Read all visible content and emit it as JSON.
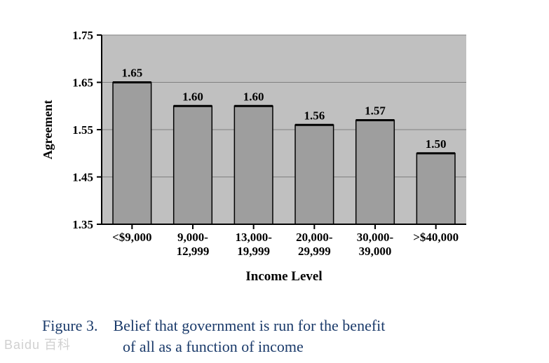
{
  "chart": {
    "type": "bar",
    "categories": [
      "<$9,000",
      "9,000-\n12,999",
      "13,000-\n19,999",
      "20,000-\n29,999",
      "30,000-\n39,000",
      ">$40,000"
    ],
    "values": [
      1.65,
      1.6,
      1.6,
      1.56,
      1.57,
      1.5
    ],
    "value_labels": [
      "1.65",
      "1.60",
      "1.60",
      "1.56",
      "1.57",
      "1.50"
    ],
    "bar_colors": [
      "#9e9e9e",
      "#9e9e9e",
      "#9e9e9e",
      "#9e9e9e",
      "#9e9e9e",
      "#9e9e9e"
    ],
    "bar_border_color": "#000000",
    "ylim": [
      1.35,
      1.75
    ],
    "yticks": [
      1.35,
      1.45,
      1.55,
      1.65,
      1.75
    ],
    "ylabel": "Agreement",
    "xlabel": "Income Level",
    "label_fontsize": 18,
    "tick_fontsize": 17,
    "value_fontsize": 17,
    "axis_color": "#000000",
    "grid_color": "#808080",
    "background_color": "#ffffff",
    "plot_background_color": "#c0c0c0",
    "bar_width": 0.63,
    "tick_font_weight": "bold",
    "label_font_weight": "bold",
    "value_font_weight": "bold"
  },
  "caption": {
    "label": "Figure 3.",
    "text_line1": "Belief that government is run for the benefit",
    "text_line2": "of all as a function of income",
    "fontsize": 22,
    "color": "#1a3a6a"
  },
  "watermark": {
    "text": "Baidu 百科"
  }
}
